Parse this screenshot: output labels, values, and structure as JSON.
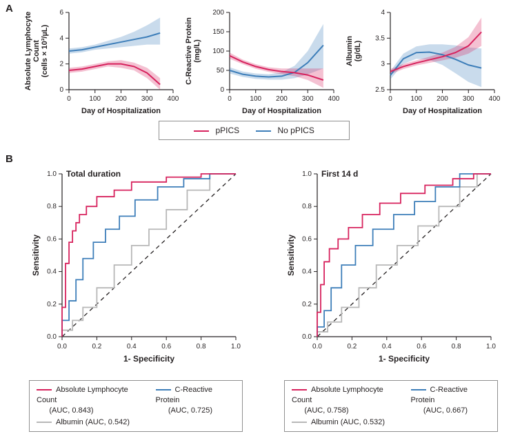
{
  "colors": {
    "ppics": "#d7225d",
    "no_ppics": "#3d7eb9",
    "albumin_roc": "#b7b7b7",
    "axis": "#231f20",
    "bg": "#ffffff",
    "band_ppics": "rgba(215,34,93,0.28)",
    "band_no_ppics": "rgba(61,126,185,0.28)",
    "dashed": "#231f20"
  },
  "panelA": {
    "label": "A",
    "shared_x": {
      "label": "Day of Hospitalization",
      "lim": [
        0,
        400
      ],
      "ticks": [
        0,
        100,
        200,
        300,
        400
      ]
    },
    "legend": {
      "items": [
        {
          "key": "ppics",
          "label": "pPICS"
        },
        {
          "key": "no_ppics",
          "label": "No pPICS"
        }
      ]
    },
    "plots": [
      {
        "id": "alc",
        "ylabel_line1": "Absolute Lymphocyte",
        "ylabel_line2": "Count",
        "y_units": "(cells × 10³/µL)",
        "ylim": [
          0,
          6
        ],
        "yticks": [
          0,
          2,
          4,
          6
        ],
        "series": {
          "ppics": {
            "x": [
              0,
              50,
              100,
              150,
              200,
              250,
              300,
              350
            ],
            "y": [
              1.5,
              1.6,
              1.8,
              2.0,
              2.0,
              1.8,
              1.3,
              0.4
            ],
            "band_lo": [
              1.3,
              1.4,
              1.6,
              1.8,
              1.7,
              1.5,
              0.9,
              0.0
            ],
            "band_hi": [
              1.7,
              1.8,
              2.0,
              2.2,
              2.3,
              2.1,
              1.7,
              0.9
            ]
          },
          "no_ppics": {
            "x": [
              0,
              50,
              100,
              150,
              200,
              250,
              300,
              350
            ],
            "y": [
              3.0,
              3.1,
              3.3,
              3.5,
              3.7,
              3.9,
              4.1,
              4.4
            ],
            "band_lo": [
              2.8,
              2.9,
              3.1,
              3.2,
              3.3,
              3.4,
              3.5,
              3.5
            ],
            "band_hi": [
              3.2,
              3.3,
              3.5,
              3.8,
              4.1,
              4.5,
              5.0,
              5.6
            ]
          }
        }
      },
      {
        "id": "crp",
        "ylabel_line1": "C-Reactive Protein",
        "ylabel_line2": "",
        "y_units": "(mg/L)",
        "ylim": [
          0,
          200
        ],
        "yticks": [
          0,
          50,
          100,
          150,
          200
        ],
        "series": {
          "ppics": {
            "x": [
              0,
              50,
              100,
              150,
              200,
              250,
              300,
              360
            ],
            "y": [
              88,
              72,
              60,
              52,
              47,
              44,
              38,
              25
            ],
            "band_lo": [
              80,
              66,
              54,
              46,
              40,
              35,
              25,
              5
            ],
            "band_hi": [
              96,
              78,
              66,
              58,
              55,
              55,
              55,
              55
            ]
          },
          "no_ppics": {
            "x": [
              0,
              50,
              100,
              150,
              200,
              250,
              300,
              360
            ],
            "y": [
              50,
              40,
              35,
              33,
              35,
              45,
              70,
              115
            ],
            "band_lo": [
              42,
              33,
              28,
              26,
              26,
              30,
              40,
              55
            ],
            "band_hi": [
              58,
              47,
              42,
              40,
              45,
              62,
              100,
              170
            ]
          }
        }
      },
      {
        "id": "albumin",
        "ylabel_line1": "Albumin",
        "ylabel_line2": "",
        "y_units": "(g/dL)",
        "ylim": [
          2.5,
          4.0
        ],
        "yticks": [
          2.5,
          3.0,
          3.5,
          4.0
        ],
        "series": {
          "ppics": {
            "x": [
              0,
              50,
              100,
              150,
              200,
              250,
              300,
              350
            ],
            "y": [
              2.85,
              2.95,
              3.02,
              3.08,
              3.14,
              3.22,
              3.35,
              3.62
            ],
            "band_lo": [
              2.8,
              2.9,
              2.97,
              3.02,
              3.07,
              3.12,
              3.2,
              3.35
            ],
            "band_hi": [
              2.9,
              3.0,
              3.07,
              3.14,
              3.22,
              3.33,
              3.52,
              3.9
            ]
          },
          "no_ppics": {
            "x": [
              0,
              50,
              100,
              150,
              200,
              250,
              300,
              350
            ],
            "y": [
              2.78,
              3.1,
              3.22,
              3.23,
              3.18,
              3.09,
              2.98,
              2.92
            ],
            "band_lo": [
              2.7,
              3.0,
              3.1,
              3.08,
              2.98,
              2.82,
              2.65,
              2.55
            ],
            "band_hi": [
              2.86,
              3.2,
              3.34,
              3.38,
              3.38,
              3.36,
              3.32,
              3.3
            ]
          }
        }
      }
    ]
  },
  "panelB": {
    "label": "B",
    "plots": [
      {
        "id": "roc_total",
        "title": "Total duration",
        "series": {
          "alc": {
            "auc": "0.843",
            "x": [
              0,
              0.02,
              0.04,
              0.06,
              0.08,
              0.1,
              0.14,
              0.2,
              0.3,
              0.4,
              0.6,
              0.8,
              1.0
            ],
            "y": [
              0,
              0.18,
              0.45,
              0.58,
              0.65,
              0.7,
              0.75,
              0.8,
              0.86,
              0.9,
              0.95,
              0.98,
              1.0
            ]
          },
          "crp": {
            "auc": "0.725",
            "x": [
              0,
              0.04,
              0.08,
              0.12,
              0.18,
              0.25,
              0.33,
              0.42,
              0.55,
              0.7,
              0.85,
              1.0
            ],
            "y": [
              0,
              0.1,
              0.22,
              0.35,
              0.48,
              0.58,
              0.66,
              0.74,
              0.84,
              0.92,
              0.97,
              1.0
            ]
          },
          "alb": {
            "auc": "0.542",
            "x": [
              0,
              0.06,
              0.12,
              0.2,
              0.3,
              0.4,
              0.5,
              0.6,
              0.72,
              0.85,
              1.0
            ],
            "y": [
              0,
              0.04,
              0.1,
              0.18,
              0.3,
              0.44,
              0.56,
              0.66,
              0.78,
              0.9,
              1.0
            ]
          }
        }
      },
      {
        "id": "roc_first14",
        "title": "First 14 d",
        "series": {
          "alc": {
            "auc": "0.758",
            "x": [
              0,
              0.02,
              0.04,
              0.07,
              0.12,
              0.18,
              0.26,
              0.36,
              0.48,
              0.62,
              0.78,
              0.9,
              1.0
            ],
            "y": [
              0,
              0.15,
              0.32,
              0.46,
              0.54,
              0.6,
              0.67,
              0.75,
              0.82,
              0.88,
              0.93,
              0.97,
              1.0
            ]
          },
          "crp": {
            "auc": "0.667",
            "x": [
              0,
              0.04,
              0.08,
              0.14,
              0.22,
              0.32,
              0.44,
              0.56,
              0.68,
              0.82,
              1.0
            ],
            "y": [
              0,
              0.06,
              0.16,
              0.3,
              0.44,
              0.56,
              0.66,
              0.75,
              0.83,
              0.92,
              1.0
            ]
          },
          "alb": {
            "auc": "0.532",
            "x": [
              0,
              0.06,
              0.14,
              0.24,
              0.34,
              0.46,
              0.58,
              0.7,
              0.82,
              0.92,
              1.0
            ],
            "y": [
              0,
              0.03,
              0.09,
              0.18,
              0.3,
              0.44,
              0.56,
              0.68,
              0.8,
              0.92,
              1.0
            ]
          }
        }
      }
    ],
    "axis": {
      "xlabel": "1- Specificity",
      "ylabel": "Sensitivity",
      "ticks": [
        0.0,
        0.2,
        0.4,
        0.6,
        0.8,
        1.0
      ]
    },
    "legend_labels": {
      "alc": "Absolute Lymphocyte Count",
      "crp": "C-Reactive Protein",
      "alb": "Albumin",
      "auc_prefix": "(AUC, ",
      "auc_suffix": ")"
    }
  },
  "styling": {
    "line_width_series": 2.0,
    "line_width_axis": 1.2,
    "tick_len": 5,
    "font_axis_label": 11,
    "font_tick": 10,
    "font_bold_title": 12,
    "font_panel_label": 15
  }
}
